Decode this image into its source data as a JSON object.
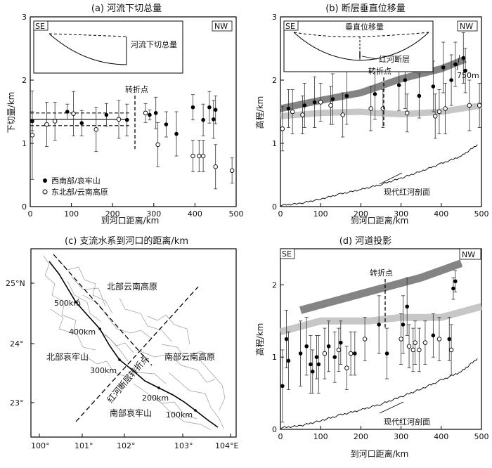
{
  "chart_data": [
    {
      "panel": "a",
      "type": "scatter",
      "title": "(a) 河流下切总量",
      "xlabel": "到河口距离/km",
      "ylabel": "下切量/km",
      "xlim": [
        0,
        500
      ],
      "ylim": [
        0,
        3
      ],
      "xticks": [
        "0",
        "100",
        "200",
        "300",
        "400",
        "500"
      ],
      "yticks": [
        "0",
        "1",
        "2",
        "3"
      ],
      "inset": {
        "left": "SE",
        "right": "NW",
        "label": "河流下切总量"
      },
      "annotation": "转折点",
      "legend": [
        "西南部/哀牢山",
        "东北部/云南高原"
      ],
      "mean_band": {
        "mean": 1.38,
        "upper": 1.48,
        "lower": 1.28
      },
      "series": [
        {
          "name": "西南部/哀牢山",
          "marker": "filled",
          "points": [
            [
              5,
              1.35,
              0.15
            ],
            [
              90,
              1.5,
              0.12
            ],
            [
              125,
              1.32,
              0.2
            ],
            [
              185,
              1.45,
              0.18
            ],
            [
              235,
              1.37,
              0.25
            ],
            [
              290,
              1.45,
              0.08
            ],
            [
              305,
              1.48,
              0.25
            ],
            [
              330,
              1.3,
              0.2
            ],
            [
              355,
              1.15,
              0.35
            ],
            [
              395,
              1.57,
              0.2
            ],
            [
              420,
              1.37,
              0.25
            ],
            [
              435,
              1.57,
              0.25
            ],
            [
              445,
              1.38,
              0.3
            ],
            [
              450,
              1.53,
              0.22
            ]
          ]
        },
        {
          "name": "东北部/云南高原",
          "marker": "open",
          "points": [
            [
              5,
              1.13,
              0.7
            ],
            [
              40,
              1.3,
              0.35
            ],
            [
              60,
              1.35,
              0.3
            ],
            [
              105,
              1.47,
              0.35
            ],
            [
              160,
              1.22,
              0.35
            ],
            [
              215,
              1.38,
              0.3
            ],
            [
              280,
              1.48,
              0.15
            ],
            [
              310,
              0.98,
              0.35
            ],
            [
              395,
              0.8,
              0.25
            ],
            [
              410,
              0.8,
              0.25
            ],
            [
              420,
              0.8,
              0.25
            ],
            [
              450,
              0.63,
              0.35
            ],
            [
              490,
              0.57,
              0.2
            ]
          ]
        }
      ]
    },
    {
      "panel": "b",
      "type": "scatter",
      "title": "(b) 断层垂直位移量",
      "xlabel": "到河口距离/km",
      "ylabel": "高程/km",
      "xlim": [
        0,
        500
      ],
      "ylim": [
        0,
        3
      ],
      "xticks": [
        "0",
        "100",
        "200",
        "300",
        "400",
        "500"
      ],
      "yticks": [
        "0",
        "1",
        "2",
        "3"
      ],
      "inset": {
        "left": "SE",
        "right": "NW",
        "label_top": "垂直位移量",
        "label_bottom": "红河断层"
      },
      "annotations": [
        "转折点",
        "750m",
        "现代红河剖面"
      ],
      "upper_trend": [
        [
          0,
          1.55
        ],
        [
          100,
          1.68
        ],
        [
          200,
          1.8
        ],
        [
          300,
          2.02
        ],
        [
          400,
          2.18
        ],
        [
          460,
          2.33
        ]
      ],
      "lower_trend": [
        [
          0,
          1.43
        ],
        [
          100,
          1.48
        ],
        [
          200,
          1.5
        ],
        [
          240,
          1.48
        ],
        [
          300,
          1.46
        ],
        [
          400,
          1.5
        ],
        [
          500,
          1.6
        ]
      ],
      "series": [
        {
          "name": "filled",
          "marker": "filled",
          "points": [
            [
              20,
              1.55,
              0.3
            ],
            [
              60,
              1.6,
              0.35
            ],
            [
              85,
              1.65,
              0.4
            ],
            [
              130,
              1.7,
              0.4
            ],
            [
              165,
              1.75,
              0.45
            ],
            [
              235,
              1.78,
              0.4
            ],
            [
              295,
              1.92,
              0.4
            ],
            [
              310,
              2.0,
              0.45
            ],
            [
              345,
              1.75,
              0.35
            ],
            [
              380,
              1.9,
              0.4
            ],
            [
              405,
              2.2,
              0.4
            ],
            [
              425,
              2.0,
              0.4
            ],
            [
              435,
              2.25,
              0.35
            ],
            [
              455,
              2.35,
              0.4
            ],
            [
              460,
              2.15,
              0.35
            ]
          ]
        },
        {
          "name": "open",
          "marker": "open",
          "points": [
            [
              5,
              1.23,
              0.35
            ],
            [
              30,
              1.5,
              0.35
            ],
            [
              55,
              1.45,
              0.3
            ],
            [
              100,
              1.65,
              0.3
            ],
            [
              125,
              1.6,
              0.3
            ],
            [
              155,
              1.45,
              0.35
            ],
            [
              225,
              1.55,
              0.35
            ],
            [
              255,
              1.55,
              0.3
            ],
            [
              315,
              1.48,
              0.3
            ],
            [
              385,
              1.43,
              0.35
            ],
            [
              395,
              1.5,
              0.35
            ],
            [
              410,
              1.55,
              0.4
            ],
            [
              470,
              1.6,
              0.4
            ],
            [
              495,
              1.6,
              0.35
            ]
          ]
        }
      ],
      "profile": [
        [
          0,
          0.02
        ],
        [
          50,
          0.05
        ],
        [
          100,
          0.12
        ],
        [
          150,
          0.2
        ],
        [
          200,
          0.27
        ],
        [
          250,
          0.35
        ],
        [
          300,
          0.45
        ],
        [
          350,
          0.56
        ],
        [
          400,
          0.68
        ],
        [
          450,
          0.8
        ],
        [
          490,
          0.98
        ]
      ]
    },
    {
      "panel": "c",
      "type": "map",
      "title": "(c) 支流水系到河口的距离/km",
      "x_ticks": [
        "100°",
        "101°",
        "102°",
        "103°",
        "104°E"
      ],
      "y_ticks": [
        "25°N",
        "24°",
        "23°"
      ],
      "regions": [
        "北部云南高原",
        "北部哀牢山",
        "南部云南高原",
        "南部哀牢山"
      ],
      "fault_label": "红河断层转折点",
      "distance_labels": [
        "500km",
        "400km",
        "300km",
        "200km",
        "100km"
      ]
    },
    {
      "panel": "d",
      "type": "scatter",
      "title": "(d) 河道投影",
      "xlabel": "到河口距离/km",
      "ylabel": "高程/km",
      "xlim": [
        0,
        500
      ],
      "ylim": [
        0,
        2.5
      ],
      "xticks": [
        "0",
        "100",
        "200",
        "300",
        "400",
        "500"
      ],
      "yticks": [
        "0",
        "1",
        "2"
      ],
      "corner_left": "SE",
      "corner_right": "NW",
      "annotations": [
        "转折点",
        "现代红河剖面"
      ],
      "upper_trend": [
        [
          50,
          1.65
        ],
        [
          150,
          1.8
        ],
        [
          250,
          1.95
        ],
        [
          350,
          2.1
        ],
        [
          450,
          2.3
        ]
      ],
      "lower_trend": [
        [
          0,
          1.35
        ],
        [
          100,
          1.5
        ],
        [
          220,
          1.5
        ],
        [
          300,
          1.55
        ],
        [
          400,
          1.55
        ],
        [
          500,
          1.7
        ]
      ],
      "series": [
        {
          "name": "filled",
          "marker": "filled",
          "points": [
            [
              5,
              0.6,
              0.5
            ],
            [
              15,
              1.25,
              0.4
            ],
            [
              20,
              0.95,
              0.4
            ],
            [
              50,
              1.05,
              0.45
            ],
            [
              65,
              1.15,
              0.4
            ],
            [
              75,
              0.9,
              0.4
            ],
            [
              80,
              0.8,
              0.3
            ],
            [
              90,
              1.0,
              0.3
            ],
            [
              95,
              0.9,
              0.4
            ],
            [
              120,
              1.15,
              0.35
            ],
            [
              135,
              1.0,
              0.35
            ],
            [
              150,
              1.2,
              0.3
            ],
            [
              185,
              1.05,
              0.3
            ],
            [
              245,
              1.45,
              0.4
            ],
            [
              265,
              1.05,
              0.35
            ],
            [
              305,
              1.45,
              0.4
            ],
            [
              315,
              1.7,
              0.4
            ],
            [
              380,
              1.3,
              0.3
            ],
            [
              420,
              1.25,
              0.3
            ],
            [
              430,
              1.95,
              0.15
            ],
            [
              435,
              2.05,
              0.15
            ]
          ]
        },
        {
          "name": "open",
          "marker": "open",
          "points": [
            [
              110,
              1.05,
              0.35
            ],
            [
              145,
              1.1,
              0.3
            ],
            [
              165,
              0.85,
              0.3
            ],
            [
              175,
              1.05,
              0.3
            ],
            [
              210,
              1.25,
              0.3
            ],
            [
              300,
              1.25,
              0.35
            ],
            [
              320,
              1.15,
              0.3
            ],
            [
              330,
              1.1,
              0.3
            ],
            [
              335,
              1.2,
              0.3
            ],
            [
              345,
              1.1,
              0.3
            ],
            [
              360,
              1.2,
              0.3
            ],
            [
              395,
              1.25,
              0.3
            ],
            [
              425,
              1.1,
              0.35
            ]
          ]
        }
      ],
      "profile": [
        [
          0,
          0.02
        ],
        [
          50,
          0.05
        ],
        [
          100,
          0.12
        ],
        [
          150,
          0.2
        ],
        [
          200,
          0.27
        ],
        [
          250,
          0.35
        ],
        [
          300,
          0.45
        ],
        [
          350,
          0.56
        ],
        [
          400,
          0.68
        ],
        [
          450,
          0.8
        ],
        [
          490,
          0.98
        ]
      ]
    }
  ]
}
